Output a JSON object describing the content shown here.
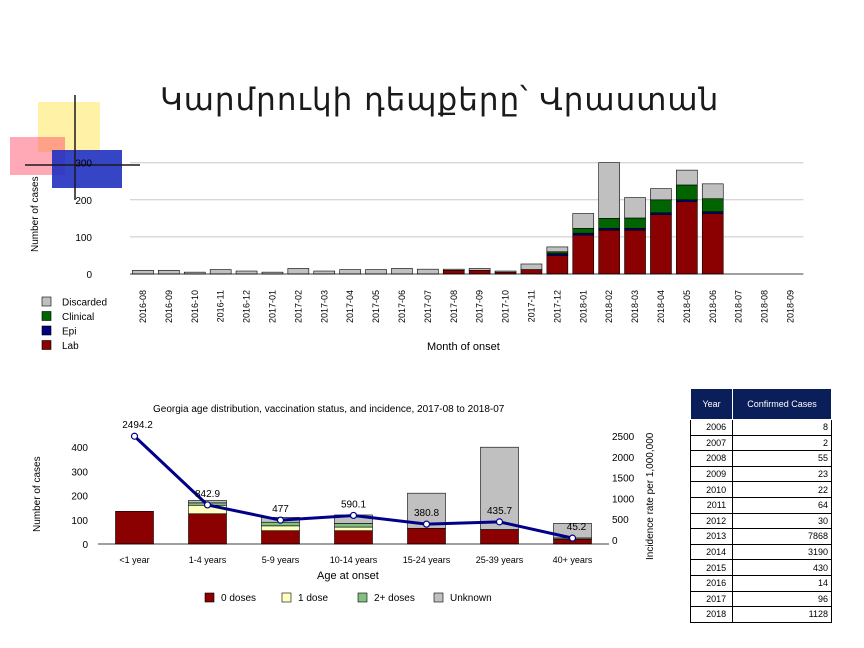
{
  "title": "Կարմրուկի դեպքերը՝ Վրաստան",
  "colors": {
    "lab": "#8b0000",
    "epi": "#000080",
    "clinical": "#006400",
    "discarded": "#c0c0c0",
    "zero": "#8b0000",
    "one": "#ffffc0",
    "two": "#80c080",
    "unknown": "#c0c0c0",
    "line": "#00008b"
  },
  "chart_data": [
    {
      "type": "bar",
      "stacked": true,
      "ylabel": "Number of cases",
      "xlabel": "Month of onset",
      "ylim": [
        0,
        300
      ],
      "yticks": [
        0,
        100,
        200,
        300
      ],
      "grid": true,
      "legend_position": "left-bottom",
      "categories": [
        "2016-08",
        "2016-09",
        "2016-10",
        "2016-11",
        "2016-12",
        "2017-01",
        "2017-02",
        "2017-03",
        "2017-04",
        "2017-05",
        "2017-06",
        "2017-07",
        "2017-08",
        "2017-09",
        "2017-10",
        "2017-11",
        "2017-12",
        "2018-01",
        "2018-02",
        "2018-03",
        "2018-04",
        "2018-05",
        "2018-06",
        "2018-07",
        "2018-08",
        "2018-09"
      ],
      "series": [
        {
          "name": "Lab",
          "values": [
            0,
            0,
            0,
            0,
            0,
            0,
            0,
            0,
            0,
            0,
            0,
            0,
            10,
            10,
            5,
            12,
            50,
            105,
            118,
            118,
            160,
            195,
            163,
            0,
            0,
            0
          ]
        },
        {
          "name": "Epi",
          "values": [
            0,
            0,
            0,
            0,
            0,
            0,
            0,
            0,
            0,
            0,
            0,
            0,
            0,
            0,
            0,
            0,
            5,
            5,
            5,
            5,
            5,
            5,
            5,
            0,
            0,
            0
          ]
        },
        {
          "name": "Clinical",
          "values": [
            0,
            0,
            0,
            0,
            0,
            0,
            0,
            0,
            0,
            0,
            0,
            0,
            0,
            0,
            0,
            0,
            5,
            13,
            27,
            28,
            35,
            40,
            35,
            0,
            0,
            0
          ]
        },
        {
          "name": "Discarded",
          "values": [
            10,
            10,
            5,
            12,
            8,
            5,
            15,
            8,
            12,
            12,
            15,
            13,
            3,
            5,
            3,
            15,
            13,
            40,
            150,
            55,
            30,
            40,
            40,
            0,
            0,
            0
          ]
        }
      ]
    },
    {
      "type": "bar",
      "stacked": true,
      "title": "Georgia age distribution, vaccination status, and incidence, 2017-08 to 2018-07",
      "xlabel": "Age at onset",
      "ylabel": "Number of cases",
      "y2label": "Incidence rate per 1,000,000",
      "ylim": [
        0,
        450
      ],
      "yticks": [
        0,
        100,
        200,
        300,
        400
      ],
      "y2lim": [
        0,
        2800
      ],
      "y2ticks": [
        0,
        500,
        1000,
        1500,
        2000,
        2500
      ],
      "categories": [
        "<1 year",
        "1-4 years",
        "5-9 years",
        "10-14 years",
        "15-24 years",
        "25-39 years",
        "40+ years"
      ],
      "series": [
        {
          "name": "0 doses",
          "values": [
            135,
            125,
            55,
            55,
            65,
            60,
            20
          ]
        },
        {
          "name": "1 dose",
          "values": [
            0,
            35,
            20,
            15,
            0,
            0,
            0
          ]
        },
        {
          "name": "2+ doses",
          "values": [
            0,
            10,
            15,
            15,
            0,
            0,
            5
          ]
        },
        {
          "name": "Unknown",
          "values": [
            0,
            10,
            20,
            35,
            145,
            340,
            60
          ]
        }
      ],
      "line": {
        "values": [
          2494.2,
          842.9,
          477,
          590.1,
          380.8,
          435.7,
          45.2
        ],
        "labels": [
          "2494.2",
          "842.9",
          "477",
          "590.1",
          "380.8",
          "435.7",
          "45.2"
        ]
      }
    }
  ],
  "table": {
    "headers": [
      "Year",
      "Confirmed Cases"
    ],
    "rows": [
      [
        "2006",
        "8"
      ],
      [
        "2007",
        "2"
      ],
      [
        "2008",
        "55"
      ],
      [
        "2009",
        "23"
      ],
      [
        "2010",
        "22"
      ],
      [
        "2011",
        "64"
      ],
      [
        "2012",
        "30"
      ],
      [
        "2013",
        "7868"
      ],
      [
        "2014",
        "3190"
      ],
      [
        "2015",
        "430"
      ],
      [
        "2016",
        "14"
      ],
      [
        "2017",
        "96"
      ],
      [
        "2018",
        "1128"
      ]
    ]
  }
}
